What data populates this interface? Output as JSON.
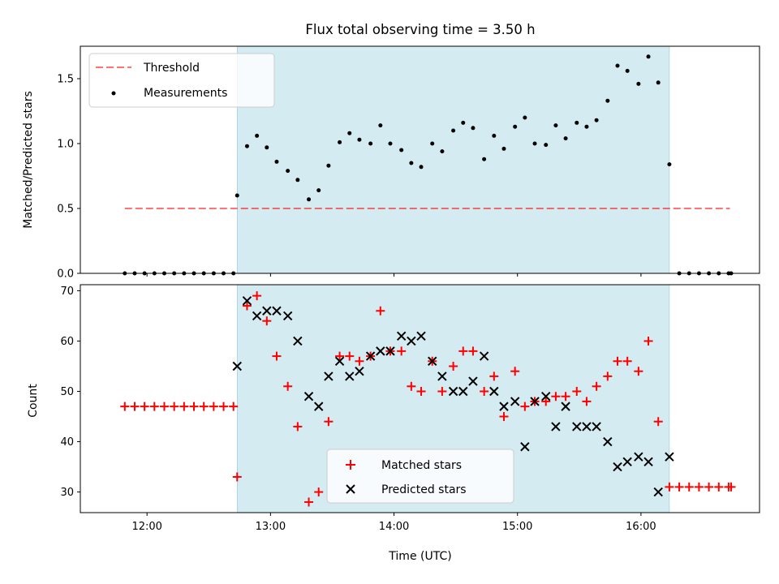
{
  "chart_data": [
    {
      "type": "scatter",
      "title": "Flux total observing time = 3.50 h",
      "xlabel": "",
      "ylabel": "Matched/Predicted stars",
      "ylim": [
        0,
        1.75
      ],
      "yticks": [
        "0.0",
        "0.5",
        "1.0",
        "1.5"
      ],
      "shaded_region": {
        "x_start": 12.73,
        "x_end": 16.23,
        "color": "#add8e6"
      },
      "threshold": {
        "name": "Threshold",
        "y": 0.5,
        "x_range": [
          11.82,
          16.72
        ],
        "color": "#ff0000"
      },
      "legend_position": "upper-left",
      "series": [
        {
          "name": "Measurements",
          "color": "#000000",
          "x": [
            11.82,
            11.9,
            11.98,
            12.06,
            12.14,
            12.22,
            12.3,
            12.38,
            12.46,
            12.54,
            12.62,
            12.7,
            12.73,
            12.81,
            12.89,
            12.97,
            13.05,
            13.14,
            13.22,
            13.31,
            13.39,
            13.47,
            13.56,
            13.64,
            13.72,
            13.81,
            13.89,
            13.97,
            14.06,
            14.14,
            14.22,
            14.31,
            14.39,
            14.48,
            14.56,
            14.64,
            14.73,
            14.81,
            14.89,
            14.98,
            15.06,
            15.14,
            15.23,
            15.31,
            15.39,
            15.48,
            15.56,
            15.64,
            15.73,
            15.81,
            15.89,
            15.98,
            16.06,
            16.14,
            16.23,
            16.31,
            16.39,
            16.47,
            16.55,
            16.63,
            16.71,
            16.73
          ],
          "y": [
            0,
            0,
            0,
            0,
            0,
            0,
            0,
            0,
            0,
            0,
            0,
            0,
            0.6,
            0.98,
            1.06,
            0.97,
            0.86,
            0.79,
            0.72,
            0.57,
            0.64,
            0.83,
            1.01,
            1.08,
            1.03,
            1.0,
            1.14,
            1.0,
            0.95,
            0.85,
            0.82,
            1.0,
            0.94,
            1.1,
            1.16,
            1.12,
            0.88,
            1.06,
            0.96,
            1.13,
            1.2,
            1.0,
            0.99,
            1.14,
            1.04,
            1.16,
            1.13,
            1.18,
            1.33,
            1.6,
            1.56,
            1.46,
            1.67,
            1.47,
            0.84,
            0,
            0,
            0,
            0,
            0,
            0,
            0
          ]
        }
      ]
    },
    {
      "type": "scatter",
      "title": "",
      "xlabel": "Time (UTC)",
      "ylabel": "Count",
      "ylim": [
        25.9,
        71.2
      ],
      "yticks": [
        "30",
        "40",
        "50",
        "60",
        "70"
      ],
      "xlim": [
        11.46,
        16.96
      ],
      "xticks": [
        "12:00",
        "13:00",
        "14:00",
        "15:00",
        "16:00"
      ],
      "shaded_region": {
        "x_start": 12.73,
        "x_end": 16.23,
        "color": "#add8e6"
      },
      "legend_position": "lower-center",
      "series": [
        {
          "name": "Matched stars",
          "color": "#ff0000",
          "marker": "plus",
          "x": [
            11.82,
            11.9,
            11.98,
            12.06,
            12.14,
            12.22,
            12.3,
            12.38,
            12.46,
            12.54,
            12.62,
            12.7,
            12.73,
            12.81,
            12.89,
            12.97,
            13.05,
            13.14,
            13.22,
            13.31,
            13.39,
            13.47,
            13.56,
            13.64,
            13.72,
            13.81,
            13.89,
            13.97,
            14.06,
            14.14,
            14.22,
            14.31,
            14.39,
            14.48,
            14.56,
            14.64,
            14.73,
            14.81,
            14.89,
            14.98,
            15.06,
            15.14,
            15.23,
            15.31,
            15.39,
            15.48,
            15.56,
            15.64,
            15.73,
            15.81,
            15.89,
            15.98,
            16.06,
            16.14,
            16.23,
            16.31,
            16.39,
            16.47,
            16.55,
            16.63,
            16.71,
            16.73
          ],
          "y": [
            47,
            47,
            47,
            47,
            47,
            47,
            47,
            47,
            47,
            47,
            47,
            47,
            33,
            67,
            69,
            64,
            57,
            51,
            43,
            28,
            30,
            44,
            57,
            57,
            56,
            57,
            66,
            58,
            58,
            51,
            50,
            56,
            50,
            55,
            58,
            58,
            50,
            53,
            45,
            54,
            47,
            48,
            48,
            49,
            49,
            50,
            48,
            51,
            53,
            56,
            56,
            54,
            60,
            44,
            31,
            31,
            31,
            31,
            31,
            31,
            31,
            31
          ]
        },
        {
          "name": "Predicted stars",
          "color": "#000000",
          "marker": "x",
          "x": [
            12.73,
            12.81,
            12.89,
            12.97,
            13.05,
            13.14,
            13.22,
            13.31,
            13.39,
            13.47,
            13.56,
            13.64,
            13.72,
            13.81,
            13.89,
            13.97,
            14.06,
            14.14,
            14.22,
            14.31,
            14.39,
            14.48,
            14.56,
            14.64,
            14.73,
            14.81,
            14.89,
            14.98,
            15.06,
            15.14,
            15.23,
            15.31,
            15.39,
            15.48,
            15.56,
            15.64,
            15.73,
            15.81,
            15.89,
            15.98,
            16.06,
            16.14,
            16.23
          ],
          "y": [
            55,
            68,
            65,
            66,
            66,
            65,
            60,
            49,
            47,
            53,
            56,
            53,
            54,
            57,
            58,
            58,
            61,
            60,
            61,
            56,
            53,
            50,
            50,
            52,
            57,
            50,
            47,
            48,
            39,
            48,
            49,
            43,
            47,
            43,
            43,
            43,
            40,
            35,
            36,
            37,
            36,
            30,
            37
          ]
        }
      ]
    }
  ]
}
